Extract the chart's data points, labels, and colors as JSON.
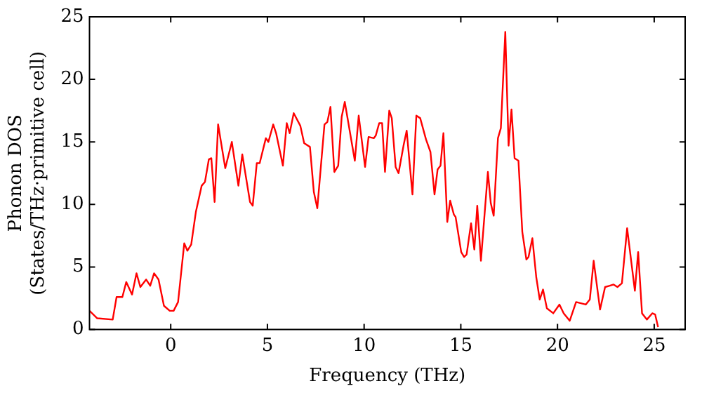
{
  "chart_data": {
    "type": "line",
    "xlabel": "Frequency (THz)",
    "ylabel": "Phonon DOS\n(States/THz·primitive cell)",
    "xlim": [
      -4.2,
      26.6
    ],
    "ylim": [
      0,
      25
    ],
    "xticks": [
      0,
      5,
      10,
      15,
      20,
      25
    ],
    "yticks": [
      0,
      5,
      10,
      15,
      20,
      25
    ],
    "grid": false,
    "legend": false,
    "marker": "none",
    "line_style": "solid",
    "series": [
      {
        "color": "#ff0000",
        "x": [
          -4.2,
          -3.8,
          -3.0,
          -2.8,
          -2.5,
          -2.3,
          -2.0,
          -1.77,
          -1.57,
          -1.27,
          -1.06,
          -0.86,
          -0.63,
          -0.35,
          -0.05,
          0.15,
          0.38,
          0.7,
          0.86,
          1.06,
          1.3,
          1.6,
          1.77,
          1.97,
          2.1,
          2.27,
          2.45,
          2.82,
          3.16,
          3.5,
          3.7,
          4.1,
          4.24,
          4.45,
          4.6,
          4.92,
          5.05,
          5.3,
          5.45,
          5.8,
          6.0,
          6.15,
          6.36,
          6.7,
          6.9,
          7.2,
          7.4,
          7.58,
          7.95,
          8.1,
          8.26,
          8.46,
          8.66,
          8.84,
          9.0,
          9.52,
          9.72,
          10.05,
          10.23,
          10.5,
          10.6,
          10.78,
          10.93,
          11.08,
          11.3,
          11.43,
          11.63,
          11.78,
          12.05,
          12.2,
          12.5,
          12.7,
          12.9,
          13.2,
          13.43,
          13.64,
          13.8,
          13.95,
          14.1,
          14.3,
          14.45,
          14.64,
          14.73,
          15.02,
          15.17,
          15.3,
          15.53,
          15.7,
          15.85,
          16.04,
          16.4,
          16.55,
          16.7,
          16.92,
          17.07,
          17.3,
          17.47,
          17.62,
          17.78,
          17.98,
          18.18,
          18.39,
          18.5,
          18.7,
          18.9,
          19.08,
          19.25,
          19.45,
          19.78,
          20.1,
          20.32,
          20.63,
          20.96,
          21.46,
          21.67,
          21.87,
          22.2,
          22.46,
          22.7,
          22.9,
          23.1,
          23.33,
          23.6,
          24.0,
          24.17,
          24.37,
          24.62,
          24.9,
          25.05,
          25.2
        ],
        "values": [
          1.5,
          0.9,
          0.8,
          2.6,
          2.6,
          3.8,
          2.8,
          4.5,
          3.4,
          4.0,
          3.5,
          4.5,
          4.0,
          1.9,
          1.5,
          1.5,
          2.2,
          6.9,
          6.3,
          6.8,
          9.4,
          11.5,
          11.8,
          13.6,
          13.7,
          10.2,
          16.4,
          12.9,
          15.0,
          11.5,
          14.0,
          10.2,
          9.9,
          13.3,
          13.3,
          15.3,
          15.0,
          16.4,
          15.7,
          13.1,
          16.5,
          15.7,
          17.3,
          16.3,
          14.9,
          14.6,
          11.0,
          9.7,
          16.4,
          16.6,
          17.8,
          12.6,
          13.1,
          17.0,
          18.2,
          13.5,
          17.1,
          13.0,
          15.4,
          15.3,
          15.5,
          16.5,
          16.5,
          12.6,
          17.5,
          16.9,
          13.0,
          12.5,
          14.8,
          15.9,
          10.8,
          17.1,
          16.9,
          15.2,
          14.2,
          10.8,
          12.8,
          13.1,
          15.7,
          8.6,
          10.3,
          9.2,
          9.0,
          6.2,
          5.8,
          6.0,
          8.5,
          6.4,
          9.9,
          5.5,
          12.6,
          10.1,
          9.1,
          15.3,
          16.1,
          23.8,
          14.7,
          17.6,
          13.7,
          13.5,
          7.8,
          5.6,
          5.8,
          7.3,
          4.2,
          2.4,
          3.2,
          1.7,
          1.3,
          2.0,
          1.3,
          0.7,
          2.2,
          2.0,
          2.4,
          5.5,
          1.6,
          3.4,
          3.5,
          3.6,
          3.4,
          3.7,
          8.1,
          3.1,
          6.2,
          1.3,
          0.8,
          1.3,
          1.2,
          0.2
        ]
      }
    ]
  }
}
